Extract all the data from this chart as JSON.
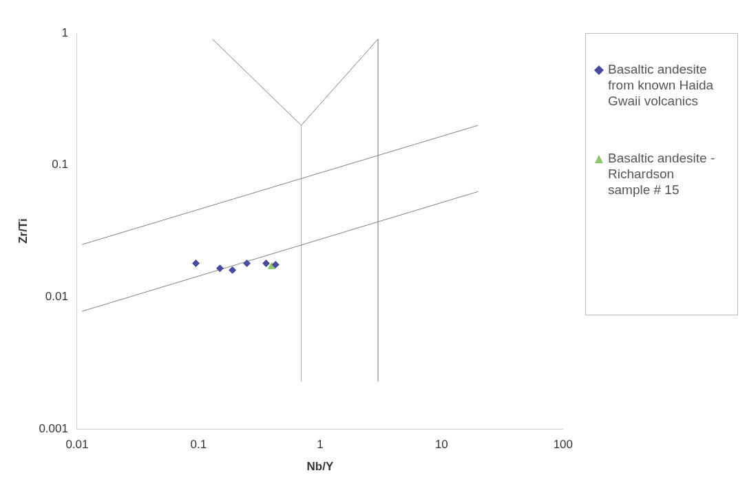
{
  "chart_data": {
    "type": "scatter",
    "xlabel": "Nb/Y",
    "ylabel": "Zr/Ti",
    "log": "xy",
    "xlim": [
      0.01,
      100
    ],
    "ylim": [
      0.001,
      1
    ],
    "xticks": [
      0.01,
      0.1,
      1,
      10,
      100
    ],
    "yticks": [
      0.001,
      0.01,
      0.1,
      1
    ],
    "grid": false,
    "legend": "right",
    "series": [
      {
        "name": "Basaltic andesite from known Haida Gwaii volcanics",
        "color": "#4a4b9c",
        "marker": "diamond",
        "x": [
          0.095,
          0.15,
          0.19,
          0.25,
          0.36,
          0.43
        ],
        "values": [
          0.018,
          0.0165,
          0.016,
          0.018,
          0.018,
          0.0176
        ]
      },
      {
        "name": "Basaltic andesite - Richardson sample # 15",
        "color": "#8cc56a",
        "marker": "triangle",
        "x": [
          0.4
        ],
        "values": [
          0.017
        ]
      },
      {
        "type": "line",
        "color": "#808080",
        "marker": "none",
        "x": [
          0.011,
          20
        ],
        "values": [
          0.025,
          0.2
        ]
      },
      {
        "type": "line",
        "color": "#808080",
        "marker": "none",
        "x": [
          0.011,
          20
        ],
        "values": [
          0.0078,
          0.063
        ]
      },
      {
        "type": "line",
        "color": "#808080",
        "marker": "none",
        "x": [
          0.13,
          0.7,
          3
        ],
        "values": [
          0.9,
          0.2,
          0.9
        ]
      },
      {
        "type": "line",
        "color": "#b0b0b0",
        "marker": "none",
        "x": [
          0.7,
          0.7
        ],
        "values": [
          0.2,
          0.0023
        ]
      },
      {
        "type": "line",
        "color": "#b0b0b0",
        "marker": "none",
        "x": [
          3,
          3
        ],
        "values": [
          0.9,
          0.0023
        ]
      }
    ]
  }
}
